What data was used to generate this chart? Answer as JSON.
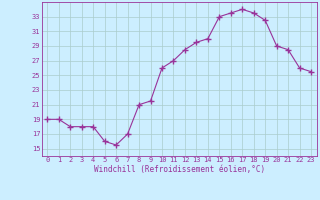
{
  "x": [
    0,
    1,
    2,
    3,
    4,
    5,
    6,
    7,
    8,
    9,
    10,
    11,
    12,
    13,
    14,
    15,
    16,
    17,
    18,
    19,
    20,
    21,
    22,
    23
  ],
  "y": [
    19,
    19,
    18,
    18,
    18,
    16,
    15.5,
    17,
    21,
    21.5,
    26,
    27,
    28.5,
    29.5,
    30,
    33,
    33.5,
    34,
    33.5,
    32.5,
    29,
    28.5,
    26,
    25.5
  ],
  "line_color": "#993399",
  "marker": "+",
  "bg_color": "#cceeff",
  "grid_color": "#aacccc",
  "xlabel": "Windchill (Refroidissement éolien,°C)",
  "xlabel_color": "#993399",
  "tick_color": "#993399",
  "ylim": [
    14,
    35
  ],
  "yticks": [
    15,
    17,
    19,
    21,
    23,
    25,
    27,
    29,
    31,
    33
  ],
  "spine_color": "#993399"
}
